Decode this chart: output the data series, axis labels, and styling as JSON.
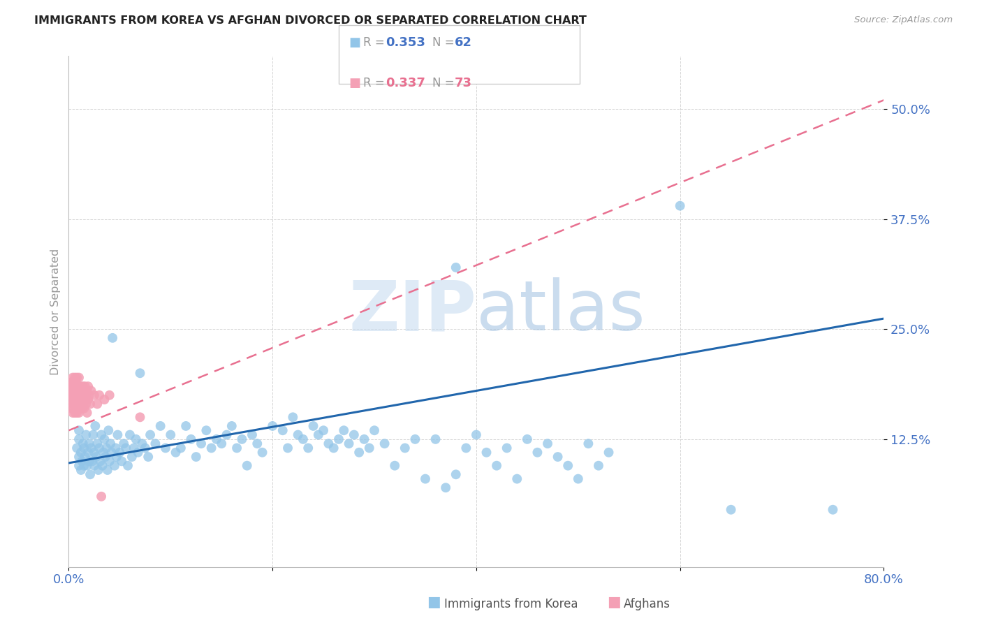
{
  "title": "IMMIGRANTS FROM KOREA VS AFGHAN DIVORCED OR SEPARATED CORRELATION CHART",
  "source": "Source: ZipAtlas.com",
  "ylabel": "Divorced or Separated",
  "yticks": [
    "50.0%",
    "37.5%",
    "25.0%",
    "12.5%"
  ],
  "ytick_vals": [
    0.5,
    0.375,
    0.25,
    0.125
  ],
  "xlim": [
    0.0,
    0.8
  ],
  "ylim": [
    -0.02,
    0.56
  ],
  "label1": "Immigrants from Korea",
  "label2": "Afghans",
  "blue_color": "#92C5E8",
  "pink_color": "#F4A0B5",
  "line_blue": "#2166AC",
  "line_pink": "#E87090",
  "axis_label_color": "#4472C4",
  "blue_line_x": [
    0.0,
    0.8
  ],
  "blue_line_y": [
    0.098,
    0.262
  ],
  "pink_line_x": [
    0.0,
    0.1
  ],
  "pink_line_y": [
    0.145,
    0.205
  ],
  "korea_scatter": [
    [
      0.008,
      0.115
    ],
    [
      0.01,
      0.095
    ],
    [
      0.01,
      0.105
    ],
    [
      0.01,
      0.125
    ],
    [
      0.01,
      0.135
    ],
    [
      0.012,
      0.09
    ],
    [
      0.012,
      0.11
    ],
    [
      0.013,
      0.1
    ],
    [
      0.014,
      0.12
    ],
    [
      0.015,
      0.095
    ],
    [
      0.015,
      0.115
    ],
    [
      0.016,
      0.105
    ],
    [
      0.017,
      0.13
    ],
    [
      0.018,
      0.095
    ],
    [
      0.019,
      0.11
    ],
    [
      0.02,
      0.1
    ],
    [
      0.02,
      0.12
    ],
    [
      0.021,
      0.085
    ],
    [
      0.022,
      0.115
    ],
    [
      0.023,
      0.1
    ],
    [
      0.024,
      0.13
    ],
    [
      0.025,
      0.095
    ],
    [
      0.025,
      0.11
    ],
    [
      0.026,
      0.14
    ],
    [
      0.027,
      0.105
    ],
    [
      0.028,
      0.12
    ],
    [
      0.029,
      0.09
    ],
    [
      0.03,
      0.115
    ],
    [
      0.031,
      0.1
    ],
    [
      0.032,
      0.13
    ],
    [
      0.033,
      0.095
    ],
    [
      0.034,
      0.11
    ],
    [
      0.035,
      0.125
    ],
    [
      0.036,
      0.105
    ],
    [
      0.037,
      0.115
    ],
    [
      0.038,
      0.09
    ],
    [
      0.039,
      0.135
    ],
    [
      0.04,
      0.1
    ],
    [
      0.041,
      0.12
    ],
    [
      0.042,
      0.11
    ],
    [
      0.043,
      0.24
    ],
    [
      0.045,
      0.095
    ],
    [
      0.046,
      0.115
    ],
    [
      0.047,
      0.105
    ],
    [
      0.048,
      0.13
    ],
    [
      0.05,
      0.11
    ],
    [
      0.052,
      0.1
    ],
    [
      0.054,
      0.12
    ],
    [
      0.056,
      0.115
    ],
    [
      0.058,
      0.095
    ],
    [
      0.06,
      0.13
    ],
    [
      0.062,
      0.105
    ],
    [
      0.064,
      0.115
    ],
    [
      0.066,
      0.125
    ],
    [
      0.068,
      0.11
    ],
    [
      0.07,
      0.2
    ],
    [
      0.072,
      0.12
    ],
    [
      0.075,
      0.115
    ],
    [
      0.078,
      0.105
    ],
    [
      0.08,
      0.13
    ],
    [
      0.085,
      0.12
    ],
    [
      0.09,
      0.14
    ],
    [
      0.095,
      0.115
    ],
    [
      0.1,
      0.13
    ],
    [
      0.105,
      0.11
    ],
    [
      0.11,
      0.115
    ],
    [
      0.115,
      0.14
    ],
    [
      0.12,
      0.125
    ],
    [
      0.125,
      0.105
    ],
    [
      0.13,
      0.12
    ],
    [
      0.135,
      0.135
    ],
    [
      0.14,
      0.115
    ],
    [
      0.145,
      0.125
    ],
    [
      0.15,
      0.12
    ],
    [
      0.155,
      0.13
    ],
    [
      0.16,
      0.14
    ],
    [
      0.165,
      0.115
    ],
    [
      0.17,
      0.125
    ],
    [
      0.175,
      0.095
    ],
    [
      0.18,
      0.13
    ],
    [
      0.185,
      0.12
    ],
    [
      0.19,
      0.11
    ],
    [
      0.2,
      0.14
    ],
    [
      0.21,
      0.135
    ],
    [
      0.215,
      0.115
    ],
    [
      0.22,
      0.15
    ],
    [
      0.225,
      0.13
    ],
    [
      0.23,
      0.125
    ],
    [
      0.235,
      0.115
    ],
    [
      0.24,
      0.14
    ],
    [
      0.245,
      0.13
    ],
    [
      0.25,
      0.135
    ],
    [
      0.255,
      0.12
    ],
    [
      0.26,
      0.115
    ],
    [
      0.265,
      0.125
    ],
    [
      0.27,
      0.135
    ],
    [
      0.275,
      0.12
    ],
    [
      0.28,
      0.13
    ],
    [
      0.285,
      0.11
    ],
    [
      0.29,
      0.125
    ],
    [
      0.295,
      0.115
    ],
    [
      0.3,
      0.135
    ],
    [
      0.31,
      0.12
    ],
    [
      0.32,
      0.095
    ],
    [
      0.33,
      0.115
    ],
    [
      0.34,
      0.125
    ],
    [
      0.35,
      0.08
    ],
    [
      0.36,
      0.125
    ],
    [
      0.37,
      0.07
    ],
    [
      0.38,
      0.085
    ],
    [
      0.39,
      0.115
    ],
    [
      0.4,
      0.13
    ],
    [
      0.41,
      0.11
    ],
    [
      0.42,
      0.095
    ],
    [
      0.43,
      0.115
    ],
    [
      0.44,
      0.08
    ],
    [
      0.45,
      0.125
    ],
    [
      0.46,
      0.11
    ],
    [
      0.47,
      0.12
    ],
    [
      0.48,
      0.105
    ],
    [
      0.49,
      0.095
    ],
    [
      0.5,
      0.08
    ],
    [
      0.51,
      0.12
    ],
    [
      0.52,
      0.095
    ],
    [
      0.53,
      0.11
    ],
    [
      0.38,
      0.32
    ],
    [
      0.6,
      0.39
    ],
    [
      0.65,
      0.045
    ],
    [
      0.75,
      0.045
    ]
  ],
  "afghan_scatter": [
    [
      0.002,
      0.175
    ],
    [
      0.002,
      0.185
    ],
    [
      0.003,
      0.16
    ],
    [
      0.003,
      0.19
    ],
    [
      0.003,
      0.17
    ],
    [
      0.003,
      0.18
    ],
    [
      0.004,
      0.165
    ],
    [
      0.004,
      0.175
    ],
    [
      0.004,
      0.155
    ],
    [
      0.004,
      0.185
    ],
    [
      0.004,
      0.195
    ],
    [
      0.005,
      0.17
    ],
    [
      0.005,
      0.18
    ],
    [
      0.005,
      0.16
    ],
    [
      0.005,
      0.19
    ],
    [
      0.005,
      0.165
    ],
    [
      0.006,
      0.175
    ],
    [
      0.006,
      0.185
    ],
    [
      0.006,
      0.155
    ],
    [
      0.006,
      0.165
    ],
    [
      0.006,
      0.195
    ],
    [
      0.007,
      0.17
    ],
    [
      0.007,
      0.16
    ],
    [
      0.007,
      0.18
    ],
    [
      0.007,
      0.19
    ],
    [
      0.008,
      0.165
    ],
    [
      0.008,
      0.175
    ],
    [
      0.008,
      0.185
    ],
    [
      0.008,
      0.155
    ],
    [
      0.008,
      0.195
    ],
    [
      0.009,
      0.17
    ],
    [
      0.009,
      0.16
    ],
    [
      0.009,
      0.18
    ],
    [
      0.009,
      0.165
    ],
    [
      0.009,
      0.185
    ],
    [
      0.01,
      0.175
    ],
    [
      0.01,
      0.165
    ],
    [
      0.01,
      0.155
    ],
    [
      0.01,
      0.185
    ],
    [
      0.01,
      0.195
    ],
    [
      0.011,
      0.17
    ],
    [
      0.011,
      0.18
    ],
    [
      0.011,
      0.16
    ],
    [
      0.011,
      0.175
    ],
    [
      0.012,
      0.165
    ],
    [
      0.012,
      0.185
    ],
    [
      0.012,
      0.17
    ],
    [
      0.013,
      0.18
    ],
    [
      0.013,
      0.16
    ],
    [
      0.013,
      0.175
    ],
    [
      0.014,
      0.165
    ],
    [
      0.014,
      0.185
    ],
    [
      0.014,
      0.17
    ],
    [
      0.015,
      0.175
    ],
    [
      0.015,
      0.16
    ],
    [
      0.016,
      0.185
    ],
    [
      0.016,
      0.17
    ],
    [
      0.017,
      0.175
    ],
    [
      0.017,
      0.165
    ],
    [
      0.018,
      0.155
    ],
    [
      0.018,
      0.18
    ],
    [
      0.019,
      0.17
    ],
    [
      0.019,
      0.185
    ],
    [
      0.02,
      0.175
    ],
    [
      0.021,
      0.165
    ],
    [
      0.022,
      0.18
    ],
    [
      0.025,
      0.175
    ],
    [
      0.028,
      0.165
    ],
    [
      0.03,
      0.175
    ],
    [
      0.032,
      0.06
    ],
    [
      0.035,
      0.17
    ],
    [
      0.04,
      0.175
    ],
    [
      0.07,
      0.15
    ]
  ]
}
